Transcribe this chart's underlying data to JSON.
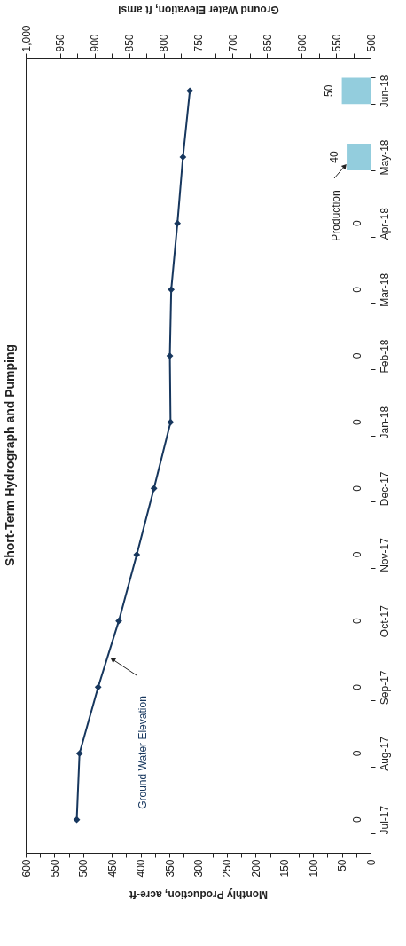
{
  "chart_data": {
    "type": "bar",
    "orientation": "horizontal",
    "title": "Short-Term Hydrograph and Pumping",
    "xlabel": "Monthly Production, acre-ft",
    "x2label": "Ground Water Elevation, ft amsl",
    "categories": [
      "Jun-18",
      "May-18",
      "Apr-18",
      "Mar-18",
      "Feb-18",
      "Jan-18",
      "Dec-17",
      "Nov-17",
      "Oct-17",
      "Sep-17",
      "Aug-17",
      "Jul-17"
    ],
    "xlim": [
      600,
      0
    ],
    "xticks": [
      0,
      {
        "value": 25,
        "label": null
      },
      50,
      {
        "value": 75,
        "label": null
      },
      100,
      {
        "value": 125,
        "label": null
      },
      150,
      {
        "value": 175,
        "label": null
      },
      200,
      {
        "value": 225,
        "label": null
      },
      250,
      {
        "value": 275,
        "label": null
      },
      300,
      {
        "value": 325,
        "label": null
      },
      350,
      {
        "value": 375,
        "label": null
      },
      400,
      {
        "value": 425,
        "label": null
      },
      450,
      {
        "value": 475,
        "label": null
      },
      500,
      {
        "value": 525,
        "label": null
      },
      550,
      {
        "value": 575,
        "label": null
      },
      600
    ],
    "x2lim": [
      1000,
      500
    ],
    "x2ticks": [
      500,
      {
        "value": 525,
        "label": null
      },
      550,
      {
        "value": 575,
        "label": null
      },
      600,
      {
        "value": 625,
        "label": null
      },
      650,
      {
        "value": 675,
        "label": null
      },
      700,
      {
        "value": 725,
        "label": null
      },
      750,
      {
        "value": 775,
        "label": null
      },
      800,
      {
        "value": 825,
        "label": null
      },
      850,
      {
        "value": 875,
        "label": null
      },
      900,
      {
        "value": 925,
        "label": null
      },
      950,
      {
        "value": 975,
        "label": null
      },
      {
        "value": 1000,
        "label": "1,000"
      }
    ],
    "series": [
      {
        "name": "Production",
        "type": "bar",
        "color": "#93cddd",
        "values": [
          50,
          40,
          0,
          0,
          0,
          0,
          0,
          0,
          0,
          0,
          0,
          0
        ],
        "value_labels": [
          "50",
          "40",
          "0",
          "0",
          "0",
          "0",
          "0",
          "0",
          "0",
          "0",
          "0",
          "0"
        ]
      },
      {
        "name": "Ground Water Elevation",
        "type": "line",
        "axis": "x2",
        "color": "#17375e",
        "values": [
          762,
          772,
          780,
          789,
          791,
          790,
          814,
          839,
          865,
          895,
          922,
          926
        ]
      }
    ],
    "marker": "diamond",
    "grid": false
  }
}
